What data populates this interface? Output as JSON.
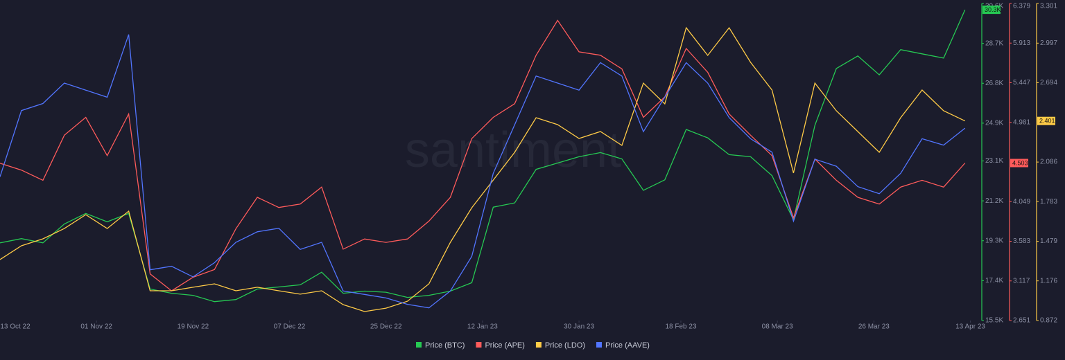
{
  "chart_data": {
    "type": "line",
    "watermark": "santiment",
    "x": [
      "2022-10-14",
      "2022-10-18",
      "2022-10-22",
      "2022-10-26",
      "2022-10-30",
      "2022-11-03",
      "2022-11-07",
      "2022-11-11",
      "2022-11-15",
      "2022-11-19",
      "2022-11-23",
      "2022-11-27",
      "2022-12-01",
      "2022-12-05",
      "2022-12-09",
      "2022-12-13",
      "2022-12-17",
      "2022-12-21",
      "2022-12-25",
      "2022-12-29",
      "2023-01-02",
      "2023-01-06",
      "2023-01-10",
      "2023-01-14",
      "2023-01-18",
      "2023-01-22",
      "2023-01-26",
      "2023-01-30",
      "2023-02-03",
      "2023-02-07",
      "2023-02-11",
      "2023-02-15",
      "2023-02-19",
      "2023-02-23",
      "2023-02-27",
      "2023-03-03",
      "2023-03-07",
      "2023-03-11",
      "2023-03-15",
      "2023-03-19",
      "2023-03-23",
      "2023-03-27",
      "2023-03-31",
      "2023-04-04",
      "2023-04-08",
      "2023-04-12"
    ],
    "xlim": [
      "2022-10-14",
      "2023-04-15"
    ],
    "xticks": [
      {
        "value": "2022-10-13",
        "label": "13 Oct 22"
      },
      {
        "value": "2022-11-01",
        "label": "01 Nov 22"
      },
      {
        "value": "2022-11-19",
        "label": "19 Nov 22"
      },
      {
        "value": "2022-12-07",
        "label": "07 Dec 22"
      },
      {
        "value": "2022-12-25",
        "label": "25 Dec 22"
      },
      {
        "value": "2023-01-12",
        "label": "12 Jan 23"
      },
      {
        "value": "2023-01-30",
        "label": "30 Jan 23"
      },
      {
        "value": "2023-02-18",
        "label": "18 Feb 23"
      },
      {
        "value": "2023-03-08",
        "label": "08 Mar 23"
      },
      {
        "value": "2023-03-26",
        "label": "26 Mar 23"
      },
      {
        "value": "2023-04-13",
        "label": "13 Apr 23"
      }
    ],
    "ylim": [
      15500,
      30600
    ],
    "yticks": [
      {
        "value": 15500,
        "label": "15.5K"
      },
      {
        "value": 17400,
        "label": "17.4K"
      },
      {
        "value": 19300,
        "label": "19.3K"
      },
      {
        "value": 21200,
        "label": "21.2K"
      },
      {
        "value": 23100,
        "label": "23.1K"
      },
      {
        "value": 24900,
        "label": "24.9K"
      },
      {
        "value": 26800,
        "label": "26.8K"
      },
      {
        "value": 28700,
        "label": "28.7K"
      },
      {
        "value": 30600,
        "label": "30.6K"
      }
    ],
    "y2lim": [
      2.651,
      6.379
    ],
    "y2ticks": [
      2.651,
      3.117,
      3.583,
      4.049,
      4.981,
      5.447,
      5.913,
      6.379
    ],
    "y3lim": [
      0.872,
      3.301
    ],
    "y3ticks": [
      0.872,
      1.176,
      1.479,
      1.783,
      2.086,
      2.694,
      2.997,
      3.301
    ],
    "y4lim": [
      50,
      95
    ],
    "grid": false,
    "legend": "bottom",
    "series": [
      {
        "name": "Price (BTC)",
        "color": "#26c953",
        "axis": "y",
        "last_label": "30.3K",
        "values": [
          19200,
          19400,
          19200,
          20100,
          20600,
          20200,
          20600,
          17000,
          16800,
          16700,
          16400,
          16500,
          17000,
          17100,
          17200,
          17800,
          16800,
          16900,
          16850,
          16600,
          16700,
          16900,
          17300,
          20900,
          21100,
          22700,
          23000,
          23300,
          23500,
          23200,
          21700,
          22200,
          24600,
          24200,
          23400,
          23300,
          22400,
          20300,
          24800,
          27500,
          28100,
          27200,
          28400,
          28200,
          28000,
          30300
        ]
      },
      {
        "name": "Price (APE)",
        "color": "#ff5b5b",
        "axis": "y2",
        "last_label": "4.503",
        "values": [
          4.5,
          4.42,
          4.3,
          4.83,
          5.04,
          4.59,
          5.08,
          3.2,
          3.0,
          3.16,
          3.25,
          3.73,
          4.1,
          3.98,
          4.02,
          4.22,
          3.49,
          3.61,
          3.57,
          3.61,
          3.82,
          4.1,
          4.79,
          5.04,
          5.2,
          5.77,
          6.18,
          5.81,
          5.77,
          5.61,
          5.04,
          5.28,
          5.85,
          5.57,
          5.08,
          4.83,
          4.59,
          3.86,
          4.55,
          4.3,
          4.1,
          4.02,
          4.22,
          4.3,
          4.22,
          4.503
        ]
      },
      {
        "name": "Price (LDO)",
        "color": "#ffcb47",
        "axis": "y3",
        "last_label": "2.401",
        "values": [
          1.339,
          1.445,
          1.498,
          1.577,
          1.683,
          1.577,
          1.71,
          1.1,
          1.1,
          1.127,
          1.153,
          1.1,
          1.127,
          1.1,
          1.074,
          1.1,
          0.994,
          0.941,
          0.967,
          1.02,
          1.153,
          1.471,
          1.736,
          1.948,
          2.161,
          2.426,
          2.373,
          2.267,
          2.32,
          2.214,
          2.691,
          2.532,
          3.115,
          2.903,
          3.115,
          2.85,
          2.638,
          2.002,
          2.691,
          2.479,
          2.32,
          2.161,
          2.426,
          2.638,
          2.479,
          2.401
        ]
      },
      {
        "name": "Price (AAVE)",
        "color": "#5275ff",
        "axis": "y4",
        "values": [
          70.4,
          79.8,
          80.8,
          83.7,
          82.7,
          81.7,
          90.6,
          57.2,
          57.7,
          56.2,
          58.2,
          61.1,
          62.6,
          63.1,
          60.1,
          61.1,
          54.2,
          53.7,
          53.2,
          52.3,
          51.8,
          54.2,
          59.1,
          70.9,
          77.8,
          84.7,
          83.7,
          82.7,
          86.6,
          84.7,
          76.8,
          81.7,
          86.6,
          83.7,
          78.8,
          75.8,
          73.9,
          64.1,
          72.9,
          71.9,
          69.0,
          68.0,
          70.9,
          75.8,
          74.9,
          77.3
        ]
      }
    ]
  }
}
